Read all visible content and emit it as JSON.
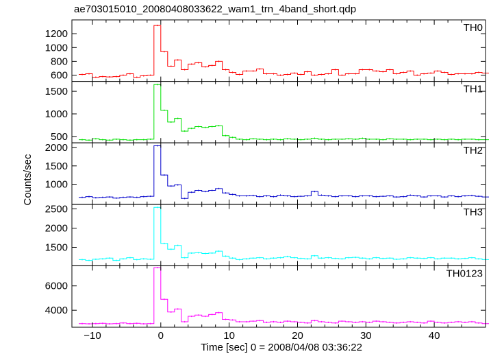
{
  "chart_data": {
    "type": "line",
    "title": "ae703015010_20080408033622_wam1_trn_4band_short.qdp",
    "xlabel": "Time [sec] 0 = 2008/04/08 03:36:22",
    "ylabel": "Counts/sec",
    "xlim": [
      -13,
      47.5
    ],
    "x_ticks": [
      -10,
      0,
      10,
      20,
      30,
      40
    ],
    "x_tick_labels": [
      "−10",
      "0",
      "10",
      "20",
      "30",
      "40"
    ],
    "bin_start": -12,
    "bin_width": 1,
    "grid": false,
    "legend": "none",
    "panels": [
      {
        "name": "TH0",
        "color": "#ff0000",
        "ylim": [
          510,
          1400
        ],
        "y_ticks": [
          600,
          800,
          1000,
          1200
        ],
        "y_tick_labels": [
          "600",
          "800",
          "1000",
          "1200"
        ],
        "values": [
          610,
          620,
          570,
          580,
          575,
          580,
          600,
          620,
          570,
          590,
          600,
          1320,
          940,
          730,
          820,
          680,
          760,
          780,
          720,
          740,
          800,
          680,
          640,
          610,
          660,
          660,
          690,
          620,
          620,
          600,
          610,
          630,
          610,
          650,
          600,
          610,
          620,
          680,
          600,
          620,
          620,
          680,
          680,
          660,
          650,
          680,
          620,
          640,
          660,
          600,
          620,
          630,
          660,
          640,
          610,
          620,
          620,
          620,
          640,
          630
        ]
      },
      {
        "name": "TH1",
        "color": "#00e000",
        "ylim": [
          360,
          1720
        ],
        "y_ticks": [
          500,
          1000,
          1500
        ],
        "y_tick_labels": [
          "500",
          "1000",
          "1500"
        ],
        "values": [
          430,
          420,
          450,
          430,
          420,
          440,
          430,
          420,
          430,
          430,
          440,
          1650,
          1080,
          820,
          900,
          620,
          680,
          720,
          700,
          720,
          740,
          520,
          480,
          440,
          430,
          450,
          440,
          430,
          440,
          430,
          450,
          440,
          430,
          440,
          460,
          440,
          430,
          440,
          440,
          450,
          440,
          460,
          440,
          440,
          430,
          450,
          440,
          440,
          430,
          440,
          440,
          430,
          440,
          430,
          440,
          430,
          440,
          440,
          430,
          430
        ]
      },
      {
        "name": "TH2",
        "color": "#0000cc",
        "ylim": [
          450,
          2130
        ],
        "y_ticks": [
          1000,
          1500,
          2000
        ],
        "y_tick_labels": [
          "1000",
          "1500",
          "2000"
        ],
        "values": [
          640,
          660,
          630,
          640,
          650,
          620,
          640,
          650,
          640,
          660,
          670,
          2050,
          1250,
          950,
          980,
          610,
          780,
          830,
          800,
          830,
          880,
          760,
          720,
          680,
          680,
          690,
          660,
          680,
          660,
          700,
          680,
          660,
          670,
          680,
          800,
          700,
          680,
          660,
          680,
          680,
          660,
          680,
          680,
          660,
          670,
          680,
          650,
          660,
          700,
          680,
          650,
          680,
          680,
          650,
          680,
          660,
          680,
          690,
          670,
          650
        ]
      },
      {
        "name": "TH3",
        "color": "#00ffff",
        "ylim": [
          1020,
          2620
        ],
        "y_ticks": [
          1500,
          2000,
          2500
        ],
        "y_tick_labels": [
          "1500",
          "2000",
          "2500"
        ],
        "values": [
          1180,
          1160,
          1190,
          1200,
          1220,
          1160,
          1200,
          1230,
          1180,
          1200,
          1190,
          2540,
          1600,
          1450,
          1550,
          1230,
          1350,
          1360,
          1340,
          1350,
          1400,
          1270,
          1220,
          1180,
          1200,
          1220,
          1230,
          1200,
          1220,
          1230,
          1260,
          1230,
          1210,
          1200,
          1280,
          1220,
          1230,
          1210,
          1200,
          1230,
          1240,
          1220,
          1200,
          1230,
          1210,
          1220,
          1190,
          1200,
          1230,
          1220,
          1210,
          1230,
          1200,
          1220,
          1220,
          1200,
          1210,
          1230,
          1200,
          1180
        ]
      },
      {
        "name": "TH0123",
        "color": "#ff00ff",
        "ylim": [
          2600,
          7650
        ],
        "y_ticks": [
          4000,
          6000
        ],
        "y_tick_labels": [
          "4000",
          "6000"
        ],
        "values": [
          2900,
          2880,
          2900,
          2920,
          2880,
          2900,
          2950,
          2900,
          2920,
          2880,
          2900,
          7500,
          4900,
          3850,
          4100,
          3050,
          3500,
          3600,
          3500,
          3650,
          3800,
          3250,
          3200,
          3050,
          3050,
          3100,
          3150,
          3000,
          3050,
          3000,
          3100,
          3050,
          3000,
          2950,
          3150,
          3050,
          3000,
          2950,
          3100,
          3050,
          3000,
          3050,
          3000,
          3100,
          3050,
          3000,
          2950,
          3000,
          3050,
          3000,
          2950,
          3100,
          3000,
          2950,
          3000,
          3050,
          3000,
          3050,
          2950,
          2900
        ]
      }
    ]
  }
}
